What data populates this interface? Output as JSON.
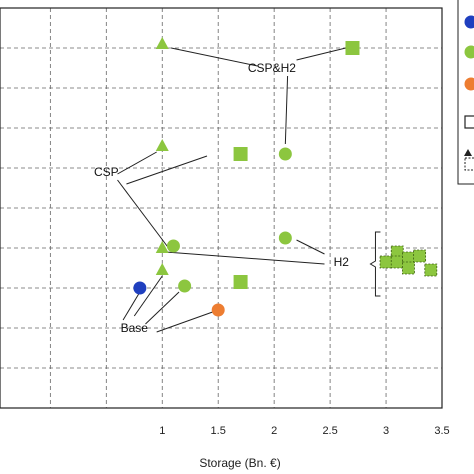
{
  "chart_data": {
    "type": "scatter",
    "xlabel": "Storage (Bn. €)",
    "xlim": [
      -0.45,
      3.5
    ],
    "ylim": [
      0,
      10
    ],
    "grid": true,
    "x_ticks": [
      "1",
      "1.5",
      "2",
      "2.5",
      "3",
      "3.5"
    ],
    "colors": {
      "blue": "#1f3fbf",
      "green": "#8cc63f",
      "orange": "#ed7d31"
    },
    "points": [
      {
        "group": "base",
        "marker": "circle",
        "color": "blue",
        "x": 0.8,
        "y": 3.0
      },
      {
        "group": "base",
        "marker": "triangle",
        "color": "green",
        "x": 1.0,
        "y": 3.45
      },
      {
        "group": "base",
        "marker": "circle",
        "color": "green",
        "x": 1.2,
        "y": 3.05
      },
      {
        "group": "base",
        "marker": "square",
        "color": "green",
        "x": 1.7,
        "y": 3.15
      },
      {
        "group": "base",
        "marker": "circle",
        "color": "orange",
        "x": 1.5,
        "y": 2.45
      },
      {
        "group": "csp",
        "marker": "triangle",
        "color": "green",
        "x": 1.0,
        "y": 6.55
      },
      {
        "group": "csp",
        "marker": "square",
        "color": "green",
        "x": 1.7,
        "y": 6.35
      },
      {
        "group": "csp",
        "marker": "circle",
        "color": "green",
        "x": 1.1,
        "y": 4.05
      },
      {
        "group": "csp",
        "marker": "triangle",
        "color": "green",
        "x": 1.0,
        "y": 4.0
      },
      {
        "group": "csp&h2",
        "marker": "triangle",
        "color": "green",
        "x": 1.0,
        "y": 9.1
      },
      {
        "group": "csp&h2",
        "marker": "square",
        "color": "green",
        "x": 2.7,
        "y": 9.0
      },
      {
        "group": "csp&h2",
        "marker": "circle",
        "color": "green",
        "x": 2.1,
        "y": 6.35
      },
      {
        "group": "h2",
        "marker": "circle",
        "color": "green",
        "x": 2.1,
        "y": 4.25
      },
      {
        "group": "h2",
        "marker": "square-dashed",
        "color": "green",
        "x": 3.0,
        "y": 3.65
      },
      {
        "group": "h2",
        "marker": "square-dashed",
        "color": "green",
        "x": 3.1,
        "y": 3.9
      },
      {
        "group": "h2",
        "marker": "square-dashed",
        "color": "green",
        "x": 3.1,
        "y": 3.65
      },
      {
        "group": "h2",
        "marker": "square-dashed",
        "color": "green",
        "x": 3.2,
        "y": 3.75
      },
      {
        "group": "h2",
        "marker": "square-dashed",
        "color": "green",
        "x": 3.2,
        "y": 3.5
      },
      {
        "group": "h2",
        "marker": "square-dashed",
        "color": "green",
        "x": 3.3,
        "y": 3.8
      },
      {
        "group": "h2",
        "marker": "square-dashed",
        "color": "green",
        "x": 3.4,
        "y": 3.45
      }
    ],
    "annotations": [
      {
        "id": "csp-h2",
        "text": "CSP&H2"
      },
      {
        "id": "csp",
        "text": "CSP"
      },
      {
        "id": "h2",
        "text": "H2"
      },
      {
        "id": "base",
        "text": "Base"
      }
    ],
    "legend": {
      "placement": "top-right (cropped)",
      "items": [
        {
          "marker": "circle",
          "color": "blue"
        },
        {
          "marker": "circle",
          "color": "green"
        },
        {
          "marker": "circle",
          "color": "orange"
        },
        {
          "marker": "square-outline"
        },
        {
          "marker": "triangle-dashed-square"
        }
      ]
    }
  }
}
